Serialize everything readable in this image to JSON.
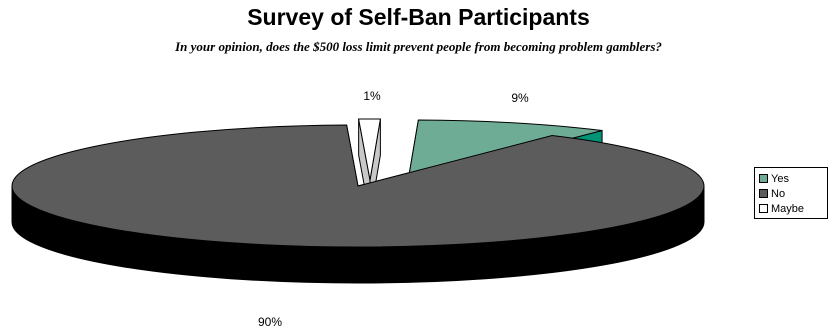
{
  "chart_data": {
    "type": "pie",
    "title": "Survey of Self-Ban Participants",
    "subtitle": "In your opinion, does the $500 loss limit prevent people from becoming problem gamblers?",
    "categories": [
      "Yes",
      "No",
      "Maybe"
    ],
    "values": [
      9,
      90,
      1
    ],
    "data_labels": [
      "9%",
      "90%",
      "1%"
    ],
    "colors": [
      "#6fac96",
      "#5c5c5c",
      "#ffffff"
    ],
    "side_colors": [
      "#009477",
      "#000000",
      "#c8c8c8"
    ],
    "three_d": true,
    "exploded": true,
    "legend_position": "right",
    "grid": false
  }
}
